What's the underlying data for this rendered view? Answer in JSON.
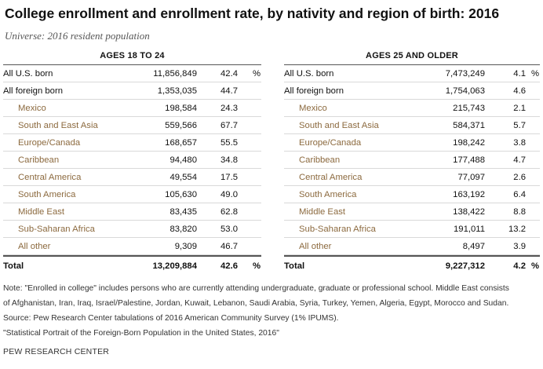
{
  "title": "College enrollment and enrollment rate, by nativity and region of birth: 2016",
  "subtitle": "Universe: 2016 resident population",
  "left": {
    "header": "AGES 18 TO 24",
    "rows": [
      {
        "label": "All U.S. born",
        "count": "11,856,849",
        "rate": "42.4",
        "pct": "%"
      },
      {
        "label": "All foreign born",
        "count": "1,353,035",
        "rate": "44.7",
        "pct": ""
      },
      {
        "label": "Mexico",
        "count": "198,584",
        "rate": "24.3",
        "pct": ""
      },
      {
        "label": "South and East Asia",
        "count": "559,566",
        "rate": "67.7",
        "pct": ""
      },
      {
        "label": "Europe/Canada",
        "count": "168,657",
        "rate": "55.5",
        "pct": ""
      },
      {
        "label": "Caribbean",
        "count": "94,480",
        "rate": "34.8",
        "pct": ""
      },
      {
        "label": "Central America",
        "count": "49,554",
        "rate": "17.5",
        "pct": ""
      },
      {
        "label": "South America",
        "count": "105,630",
        "rate": "49.0",
        "pct": ""
      },
      {
        "label": "Middle East",
        "count": "83,435",
        "rate": "62.8",
        "pct": ""
      },
      {
        "label": "Sub-Saharan Africa",
        "count": "83,820",
        "rate": "53.0",
        "pct": ""
      },
      {
        "label": "All other",
        "count": "9,309",
        "rate": "46.7",
        "pct": ""
      }
    ],
    "total": {
      "label": "Total",
      "count": "13,209,884",
      "rate": "42.6",
      "pct": "%"
    }
  },
  "right": {
    "header": "AGES 25 AND OLDER",
    "rows": [
      {
        "label": "All U.S. born",
        "count": "7,473,249",
        "rate": "4.1",
        "pct": "%"
      },
      {
        "label": "All foreign born",
        "count": "1,754,063",
        "rate": "4.6",
        "pct": ""
      },
      {
        "label": "Mexico",
        "count": "215,743",
        "rate": "2.1",
        "pct": ""
      },
      {
        "label": "South and East Asia",
        "count": "584,371",
        "rate": "5.7",
        "pct": ""
      },
      {
        "label": "Europe/Canada",
        "count": "198,242",
        "rate": "3.8",
        "pct": ""
      },
      {
        "label": "Caribbean",
        "count": "177,488",
        "rate": "4.7",
        "pct": ""
      },
      {
        "label": "Central America",
        "count": "77,097",
        "rate": "2.6",
        "pct": ""
      },
      {
        "label": "South America",
        "count": "163,192",
        "rate": "6.4",
        "pct": ""
      },
      {
        "label": "Middle East",
        "count": "138,422",
        "rate": "8.8",
        "pct": ""
      },
      {
        "label": "Sub-Saharan Africa",
        "count": "191,011",
        "rate": "13.2",
        "pct": ""
      },
      {
        "label": "All other",
        "count": "8,497",
        "rate": "3.9",
        "pct": ""
      }
    ],
    "total": {
      "label": "Total",
      "count": "9,227,312",
      "rate": "4.2",
      "pct": "%"
    }
  },
  "notes": {
    "note1": "Note: \"Enrolled in college\" includes persons who are currently attending undergraduate, graduate or professional school. Middle East consists",
    "note2": "of Afghanistan, Iran, Iraq, Israel/Palestine, Jordan, Kuwait, Lebanon, Saudi Arabia, Syria, Turkey, Yemen, Algeria, Egypt, Morocco and Sudan.",
    "source": "Source: Pew Research Center tabulations of 2016 American Community Survey (1% IPUMS).",
    "report": "\"Statistical Portrait of the Foreign-Born Population in the United States, 2016\""
  },
  "brand": "PEW RESEARCH CENTER",
  "colors": {
    "subregion_label": "#8c6a3f",
    "rule": "#555555",
    "row_divider": "#d9d9d9"
  }
}
